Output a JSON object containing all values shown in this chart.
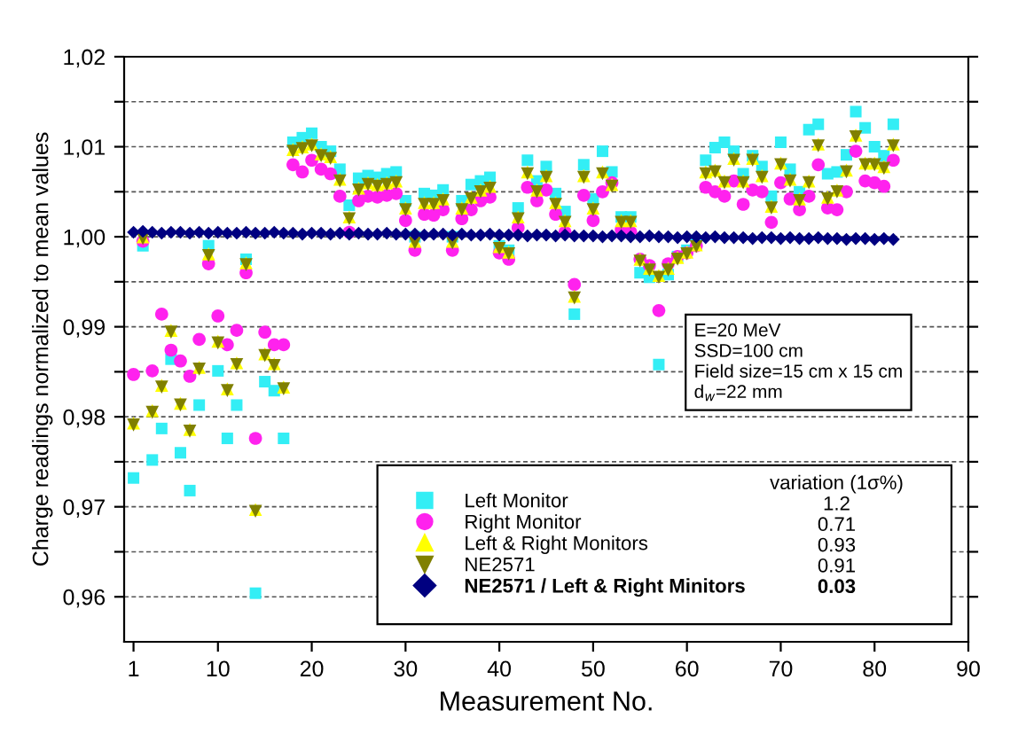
{
  "chart_data": {
    "type": "scatter",
    "xlabel": "Measurement No.",
    "ylabel": "Charge readings normalized to mean values",
    "xlim": [
      0,
      90
    ],
    "xticks": [
      1,
      10,
      20,
      30,
      40,
      50,
      60,
      70,
      80,
      90
    ],
    "ylim": [
      0.955,
      1.02
    ],
    "yticks": [
      {
        "value": 0.96,
        "label": "0,96"
      },
      {
        "value": 0.965,
        "label": null
      },
      {
        "value": 0.97,
        "label": "0,97"
      },
      {
        "value": 0.975,
        "label": null
      },
      {
        "value": 0.98,
        "label": "0,98"
      },
      {
        "value": 0.985,
        "label": null
      },
      {
        "value": 0.99,
        "label": "0,99"
      },
      {
        "value": 0.995,
        "label": null
      },
      {
        "value": 1.0,
        "label": "1,00"
      },
      {
        "value": 1.005,
        "label": null
      },
      {
        "value": 1.01,
        "label": "1,01"
      },
      {
        "value": 1.015,
        "label": null
      },
      {
        "value": 1.02,
        "label": "1,02"
      }
    ],
    "grid": "y",
    "legend": "bottom right",
    "x": [
      1,
      2,
      3,
      4,
      5,
      6,
      7,
      8,
      9,
      10,
      11,
      12,
      13,
      14,
      15,
      16,
      17,
      18,
      19,
      20,
      21,
      22,
      23,
      24,
      25,
      26,
      27,
      28,
      29,
      30,
      31,
      32,
      33,
      34,
      35,
      36,
      37,
      38,
      39,
      40,
      41,
      42,
      43,
      44,
      45,
      46,
      47,
      48,
      49,
      50,
      51,
      52,
      53,
      54,
      55,
      56,
      57,
      58,
      59,
      60,
      61,
      62,
      63,
      64,
      65,
      66,
      67,
      68,
      69,
      70,
      71,
      72,
      73,
      74,
      75,
      76,
      77,
      78,
      79,
      80,
      81,
      82
    ],
    "series": [
      {
        "name": "Left Monitor",
        "color": "#33eef5",
        "marker": "square",
        "values": [
          0.9732,
          0.999,
          0.9752,
          0.9787,
          0.9864,
          0.976,
          0.9718,
          0.9813,
          0.999,
          0.9851,
          0.9776,
          0.9813,
          0.9975,
          0.9604,
          0.9839,
          0.9829,
          0.9776,
          1.0105,
          1.011,
          1.0115,
          1.01,
          1.0095,
          1.0075,
          1.0035,
          1.0065,
          1.0068,
          1.0066,
          1.007,
          1.0072,
          1.004,
          1.0,
          1.0048,
          1.0046,
          1.0052,
          1.0,
          1.004,
          1.0058,
          1.0062,
          1.0066,
          0.999,
          0.9985,
          1.0032,
          1.0085,
          1.0062,
          1.0078,
          1.0048,
          1.0028,
          0.9914,
          1.008,
          1.0042,
          1.0095,
          1.0072,
          1.0022,
          1.0022,
          0.996,
          0.9955,
          0.9858,
          0.9958,
          0.9978,
          0.9985,
          0.9992,
          1.0085,
          1.0099,
          1.0105,
          1.0095,
          1.007,
          1.009,
          1.0078,
          1.0045,
          1.0105,
          1.0075,
          1.005,
          1.0119,
          1.0125,
          1.007,
          1.0072,
          1.0091,
          1.0139,
          1.0121,
          1.01,
          1.009,
          1.0125
        ]
      },
      {
        "name": "Right Monitor",
        "color": "#ff22ee",
        "marker": "circle",
        "values": [
          0.9847,
          0.9995,
          0.9851,
          0.9914,
          0.9874,
          0.9862,
          0.9845,
          0.9886,
          0.997,
          0.9912,
          0.988,
          0.9896,
          0.996,
          0.9776,
          0.9894,
          0.988,
          0.988,
          1.008,
          1.0072,
          1.0085,
          1.0075,
          1.007,
          1.0045,
          1.0005,
          1.004,
          1.0045,
          1.0044,
          1.0046,
          1.0048,
          1.0018,
          0.9985,
          1.0025,
          1.0024,
          1.003,
          0.9985,
          1.002,
          1.003,
          1.004,
          1.0044,
          0.9982,
          0.9975,
          1.001,
          1.0055,
          1.004,
          1.0052,
          1.0025,
          1.0005,
          0.9947,
          1.0046,
          1.0018,
          1.005,
          1.006,
          1.0008,
          1.0005,
          0.9975,
          0.9968,
          0.9918,
          0.997,
          0.9978,
          0.9982,
          0.999,
          1.0055,
          1.005,
          1.0045,
          1.0062,
          1.0036,
          1.0052,
          1.005,
          1.0016,
          1.006,
          1.0042,
          1.003,
          1.0045,
          1.008,
          1.0032,
          1.003,
          1.005,
          1.0095,
          1.0062,
          1.006,
          1.0056,
          1.0085
        ]
      },
      {
        "name": "Left & Right Monitors",
        "color": "#ffff00",
        "marker": "triangle",
        "values": [
          0.9793,
          1.0,
          0.9807,
          0.9835,
          0.9896,
          0.9815,
          0.9786,
          0.9855,
          0.9981,
          0.9884,
          0.9831,
          0.986,
          0.9971,
          0.9697,
          0.987,
          0.9859,
          0.9833,
          1.0097,
          1.01,
          1.0103,
          1.0092,
          1.0089,
          1.0064,
          1.0022,
          1.0054,
          1.006,
          1.0058,
          1.006,
          1.0062,
          1.0032,
          0.9995,
          1.0038,
          1.0038,
          1.0042,
          0.9995,
          1.0032,
          1.0044,
          1.0052,
          1.0056,
          0.9989,
          0.9983,
          1.0022,
          1.0072,
          1.0052,
          1.0068,
          1.0038,
          1.0018,
          0.9934,
          1.0068,
          1.0032,
          1.0072,
          1.0058,
          1.0018,
          1.0018,
          0.9975,
          0.9965,
          0.9957,
          0.9965,
          0.9977,
          0.9983,
          0.9991,
          1.0072,
          1.0074,
          1.0062,
          1.0087,
          1.0062,
          1.0087,
          1.0068,
          1.0034,
          1.0082,
          1.0064,
          1.0042,
          1.0062,
          1.0103,
          1.0044,
          1.0052,
          1.0074,
          1.0113,
          1.0082,
          1.0082,
          1.0078,
          1.0103
        ]
      },
      {
        "name": "NE2571",
        "color": "#808000",
        "marker": "triangle_down",
        "values": [
          0.9791,
          0.9998,
          0.9805,
          0.9833,
          0.9894,
          0.9813,
          0.9784,
          0.9853,
          0.9979,
          0.9882,
          0.9829,
          0.9858,
          0.9969,
          0.9695,
          0.9868,
          0.9857,
          0.9831,
          1.0095,
          1.0098,
          1.0101,
          1.009,
          1.0087,
          1.0062,
          1.002,
          1.0052,
          1.0058,
          1.0056,
          1.0058,
          1.006,
          1.003,
          0.9993,
          1.0036,
          1.0036,
          1.004,
          0.9993,
          1.003,
          1.0042,
          1.005,
          1.0054,
          0.9987,
          0.9981,
          1.002,
          1.007,
          1.005,
          1.0066,
          1.0036,
          1.0016,
          0.9932,
          1.0066,
          1.003,
          1.007,
          1.0056,
          1.0016,
          1.0016,
          0.9973,
          0.9963,
          0.9955,
          0.9963,
          0.9975,
          0.9981,
          0.9989,
          1.007,
          1.0072,
          1.006,
          1.0085,
          1.006,
          1.0085,
          1.0066,
          1.0032,
          1.008,
          1.0062,
          1.004,
          1.006,
          1.0101,
          1.0042,
          1.005,
          1.0072,
          1.0111,
          1.008,
          1.008,
          1.0076,
          1.0101
        ]
      },
      {
        "name": "NE2571 / Left & Right Minitors",
        "color": "#000080",
        "marker": "diamond",
        "values": [
          1.0005,
          1.0006,
          1.0005,
          1.0004,
          1.0005,
          1.0005,
          1.0004,
          1.0005,
          1.0004,
          1.0005,
          1.0004,
          1.0004,
          1.0005,
          1.0004,
          1.0004,
          1.0005,
          1.0004,
          1.0004,
          1.0003,
          1.0004,
          1.0004,
          1.0003,
          1.0004,
          1.0003,
          1.0004,
          1.0003,
          1.0003,
          1.0004,
          1.0003,
          1.0003,
          1.0003,
          1.0002,
          1.0003,
          1.0003,
          1.0002,
          1.0003,
          1.0002,
          1.0002,
          1.0003,
          1.0002,
          1.0002,
          1.0002,
          1.0001,
          1.0002,
          1.0002,
          1.0001,
          1.0002,
          1.0001,
          1.0001,
          1.0001,
          1.0,
          1.0001,
          1.0001,
          1.0,
          1.0,
          1.0001,
          1.0,
          1.0,
          0.9999,
          1.0,
          1.0,
          0.9999,
          1.0,
          0.9999,
          0.9999,
          0.9999,
          0.9998,
          0.9999,
          0.9999,
          0.9998,
          0.9999,
          0.9998,
          0.9998,
          0.9999,
          0.9998,
          0.9998,
          0.9997,
          0.9998,
          0.9998,
          0.9997,
          0.9998,
          0.9997
        ]
      }
    ],
    "annotations": [
      "variation (1σ%)",
      "1.2",
      "0.71",
      "0.93",
      "0.91",
      "0.03",
      "E=20 MeV\nSSD=100 cm\nField size=15 cm x 15 cm\nd$_{w}$=22 mm"
    ]
  }
}
